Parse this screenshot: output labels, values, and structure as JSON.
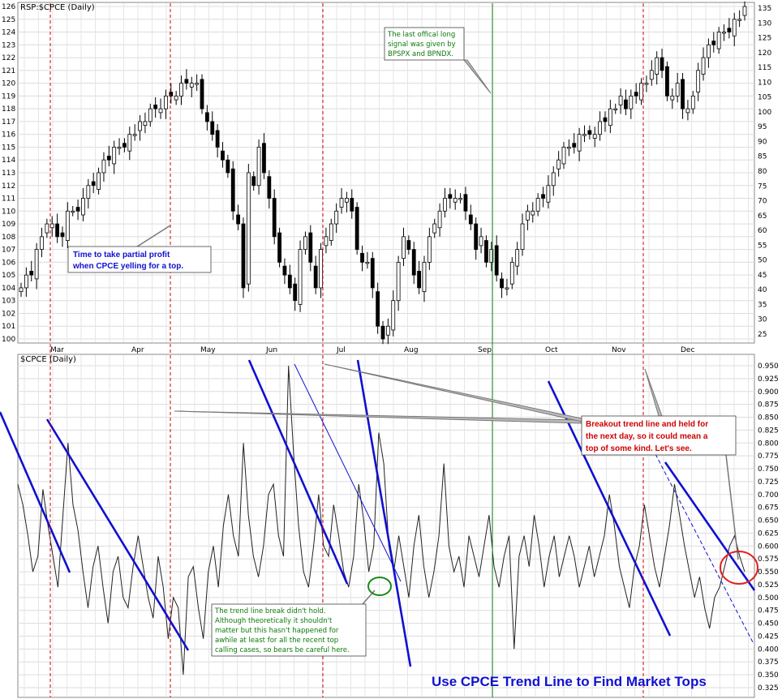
{
  "headline": "Use CPCE Trend Line to Find Market Tops",
  "price_panel": {
    "title": "RSP:$CPCE (Daily)",
    "left_axis_ticks": [
      100,
      101,
      102,
      103,
      104,
      105,
      106,
      107,
      108,
      109,
      110,
      111,
      112,
      113,
      114,
      115,
      116,
      117,
      118,
      119,
      120,
      121,
      122,
      123,
      124,
      125,
      126
    ],
    "right_axis_ticks": [
      25,
      30,
      35,
      40,
      45,
      50,
      55,
      60,
      65,
      70,
      75,
      80,
      85,
      90,
      95,
      100,
      105,
      110,
      115,
      120,
      125,
      130,
      135
    ]
  },
  "cpce_panel": {
    "title": "$CPCE (Daily)",
    "right_axis_ticks": [
      "0.325",
      "0.350",
      "0.375",
      "0.400",
      "0.425",
      "0.450",
      "0.475",
      "0.500",
      "0.525",
      "0.550",
      "0.575",
      "0.600",
      "0.625",
      "0.650",
      "0.675",
      "0.700",
      "0.725",
      "0.750",
      "0.775",
      "0.800",
      "0.825",
      "0.850",
      "0.875",
      "0.900",
      "0.925",
      "0.950"
    ]
  },
  "months": [
    "Mar",
    "Apr",
    "May",
    "Jun",
    "Jul",
    "Aug",
    "Sep",
    "Oct",
    "Nov",
    "Dec"
  ],
  "colors": {
    "red_marker": "#d00000",
    "green_marker": "#0a8a0a",
    "trend": "#1010d0",
    "candle": "#000000",
    "cpce": "#222222"
  },
  "annotations": [
    {
      "lines": [
        "Time to take partial profit",
        "when CPCE yelling for a top."
      ]
    },
    {
      "lines": [
        "The last offical long",
        "signal was given by",
        "BPSPX and BPNDX."
      ]
    },
    {
      "lines": [
        "Breakout trend line and held for",
        "the next day, so it could mean a",
        "top of some kind. Let's see."
      ]
    },
    {
      "lines": [
        "The trend line break didn't hold.",
        "Although theoretically it shouldn't",
        "matter but this hasn't happened for",
        "awhile at least for all the recent top",
        "calling cases, so bears be careful here."
      ]
    }
  ],
  "chart_data": [
    {
      "type": "candlestick",
      "title": "RSP:$CPCE (Daily)",
      "xlabel": "",
      "ylabel": "",
      "x_months": [
        "Mar",
        "Apr",
        "May",
        "Jun",
        "Jul",
        "Aug",
        "Sep",
        "Oct",
        "Nov",
        "Dec"
      ],
      "ylim": [
        100,
        126
      ],
      "secondary_ylim": [
        25,
        135
      ],
      "closes": [
        104,
        105,
        105,
        107,
        108,
        109,
        109,
        108,
        108,
        110,
        110,
        110,
        111,
        112,
        112,
        113,
        114,
        114,
        115,
        115,
        115,
        116,
        116,
        117,
        117,
        118,
        118,
        118,
        119,
        119,
        119,
        120,
        120,
        120,
        120,
        118,
        117,
        116,
        115,
        114,
        113,
        110,
        109,
        104,
        113,
        112,
        115,
        113,
        111,
        108,
        106,
        105,
        104,
        103,
        107,
        108,
        106,
        104,
        107,
        108,
        109,
        110,
        111,
        111,
        110,
        107,
        106,
        106,
        104,
        101,
        100,
        101,
        103,
        106,
        108,
        107,
        105,
        104,
        106,
        108,
        109,
        110,
        111,
        111,
        111,
        111,
        110,
        109,
        107,
        108,
        106,
        107,
        105,
        104,
        104,
        106,
        107,
        109,
        110,
        110,
        111,
        111,
        112,
        113,
        114,
        115,
        115,
        115,
        116,
        116,
        116,
        116,
        117,
        117,
        118,
        118,
        119,
        118,
        119,
        119,
        120,
        120,
        121,
        122,
        121,
        119,
        119,
        120,
        118,
        118,
        119,
        121,
        122,
        123,
        123,
        124,
        124,
        124,
        125,
        125,
        126
      ]
    },
    {
      "type": "line",
      "title": "$CPCE (Daily)",
      "xlabel": "",
      "ylabel": "",
      "ylim": [
        0.325,
        0.95
      ],
      "values": [
        0.72,
        0.68,
        0.62,
        0.55,
        0.58,
        0.71,
        0.64,
        0.58,
        0.52,
        0.66,
        0.8,
        0.68,
        0.63,
        0.55,
        0.48,
        0.56,
        0.6,
        0.52,
        0.45,
        0.55,
        0.58,
        0.5,
        0.48,
        0.56,
        0.62,
        0.56,
        0.5,
        0.46,
        0.58,
        0.52,
        0.42,
        0.5,
        0.48,
        0.35,
        0.54,
        0.56,
        0.48,
        0.42,
        0.55,
        0.6,
        0.52,
        0.64,
        0.7,
        0.62,
        0.58,
        0.8,
        0.66,
        0.58,
        0.54,
        0.6,
        0.7,
        0.72,
        0.62,
        0.58,
        0.95,
        0.78,
        0.64,
        0.55,
        0.52,
        0.6,
        0.7,
        0.6,
        0.58,
        0.68,
        0.62,
        0.55,
        0.52,
        0.58,
        0.72,
        0.65,
        0.55,
        0.6,
        0.82,
        0.76,
        0.6,
        0.55,
        0.62,
        0.56,
        0.5,
        0.6,
        0.66,
        0.56,
        0.5,
        0.55,
        0.62,
        0.76,
        0.6,
        0.55,
        0.58,
        0.52,
        0.62,
        0.58,
        0.54,
        0.6,
        0.66,
        0.56,
        0.52,
        0.58,
        0.62,
        0.4,
        0.58,
        0.62,
        0.56,
        0.66,
        0.6,
        0.52,
        0.58,
        0.62,
        0.54,
        0.58,
        0.62,
        0.58,
        0.52,
        0.56,
        0.6,
        0.54,
        0.58,
        0.62,
        0.7,
        0.64,
        0.56,
        0.52,
        0.48,
        0.56,
        0.6,
        0.68,
        0.62,
        0.56,
        0.52,
        0.58,
        0.64,
        0.72,
        0.66,
        0.6,
        0.55,
        0.5,
        0.54,
        0.48,
        0.44,
        0.5,
        0.52,
        0.56,
        0.6,
        0.62,
        0.58,
        0.55
      ]
    }
  ]
}
